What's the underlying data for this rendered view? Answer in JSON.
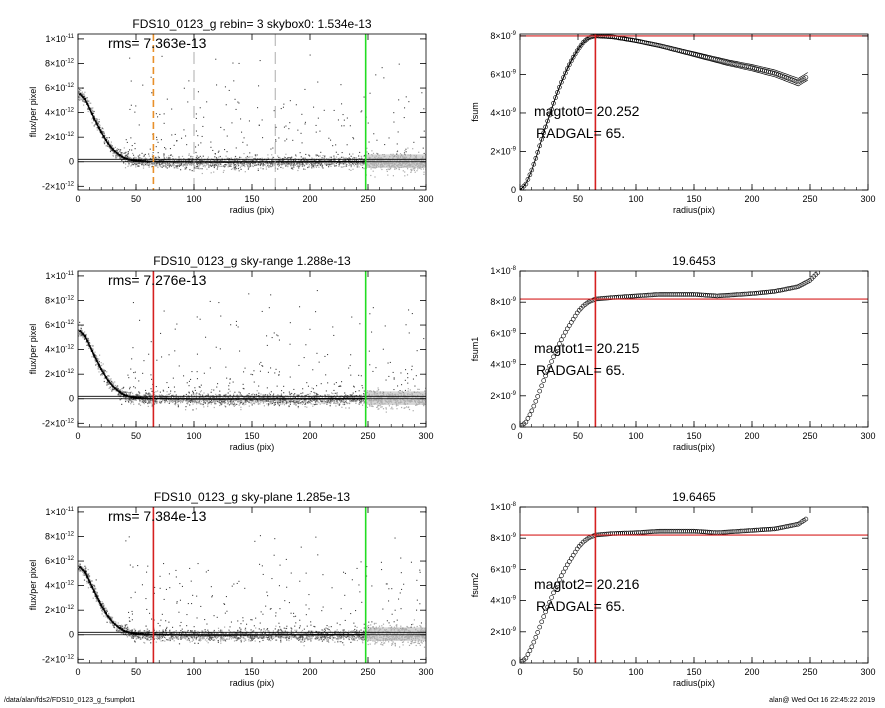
{
  "footer": {
    "left": "/data/alan/fds2/FDS10_0123_g_fsumplot1",
    "right": "alan@  Wed Oct 16 22:45:22 2019"
  },
  "colors": {
    "orange": "#e8902a",
    "red": "#d62020",
    "green": "#22dd22",
    "gray": "#9a9a9a",
    "black": "#000000"
  },
  "chart_data": [
    {
      "id": "profile-1",
      "type": "scatter",
      "title": "FDS10_0123_g rebin= 3   skybox0:  1.534e-13",
      "xlabel": "radius (pix)",
      "ylabel": "flux/per pixel",
      "xlim": [
        0,
        300
      ],
      "ylim": [
        -2.3e-12,
        1.04e-11
      ],
      "xticks": [
        0,
        50,
        100,
        150,
        200,
        250,
        300
      ],
      "yticks": [
        {
          "v": -2e-12,
          "m": "-2×10",
          "e": "-12"
        },
        {
          "v": 0,
          "m": "0",
          "e": ""
        },
        {
          "v": 2e-12,
          "m": "2×10",
          "e": "-12"
        },
        {
          "v": 4e-12,
          "m": "4×10",
          "e": "-12"
        },
        {
          "v": 6e-12,
          "m": "6×10",
          "e": "-12"
        },
        {
          "v": 8e-12,
          "m": "8×10",
          "e": "-12"
        },
        {
          "v": 1e-11,
          "m": "1×10",
          "e": "-11"
        }
      ],
      "annotation": "rms= 7.363e-13",
      "vlines": [
        {
          "x": 65,
          "color": "orange",
          "style": "dashed"
        },
        {
          "x": 100,
          "color": "gray",
          "style": "longdash"
        },
        {
          "x": 170,
          "color": "gray",
          "style": "longdash"
        },
        {
          "x": 248,
          "color": "green",
          "style": "solid"
        }
      ],
      "hlines": [
        {
          "y": 2e-13
        },
        {
          "y": 0
        }
      ],
      "profile": [
        [
          2,
          5.5e-12
        ],
        [
          6,
          5.1e-12
        ],
        [
          10,
          4.3e-12
        ],
        [
          15,
          3.3e-12
        ],
        [
          20,
          2.4e-12
        ],
        [
          25,
          1.6e-12
        ],
        [
          30,
          1e-12
        ],
        [
          35,
          6e-13
        ],
        [
          40,
          3e-13
        ],
        [
          45,
          1.5e-13
        ],
        [
          50,
          8e-14
        ],
        [
          60,
          2e-14
        ],
        [
          80,
          0
        ],
        [
          120,
          -2e-14
        ],
        [
          200,
          0
        ],
        [
          248,
          0
        ]
      ]
    },
    {
      "id": "growth-1",
      "type": "line",
      "title": "",
      "xlabel": "radius(pix)",
      "ylabel": "fsum",
      "xlim": [
        0,
        300
      ],
      "ylim": [
        0,
        8.1e-09
      ],
      "xticks": [
        0,
        50,
        100,
        150,
        200,
        250,
        300
      ],
      "yticks": [
        {
          "v": 0,
          "m": "0",
          "e": ""
        },
        {
          "v": 2e-09,
          "m": "2×10",
          "e": "-9"
        },
        {
          "v": 4e-09,
          "m": "4×10",
          "e": "-9"
        },
        {
          "v": 6e-09,
          "m": "6×10",
          "e": "-9"
        },
        {
          "v": 8e-09,
          "m": "8×10",
          "e": "-9"
        }
      ],
      "annotations": [
        "magtot0= 20.252",
        "RADGAL=     65."
      ],
      "vlines": [
        {
          "x": 65,
          "color": "red",
          "style": "solid"
        }
      ],
      "hlines": [
        {
          "y": 8e-09,
          "color": "red"
        }
      ],
      "curve": [
        [
          0,
          0
        ],
        [
          5,
          3e-10
        ],
        [
          10,
          1e-09
        ],
        [
          15,
          1.9e-09
        ],
        [
          20,
          2.9e-09
        ],
        [
          25,
          3.8e-09
        ],
        [
          30,
          4.7e-09
        ],
        [
          35,
          5.5e-09
        ],
        [
          40,
          6.2e-09
        ],
        [
          45,
          6.8e-09
        ],
        [
          50,
          7.3e-09
        ],
        [
          55,
          7.7e-09
        ],
        [
          60,
          7.93e-09
        ],
        [
          65,
          8e-09
        ],
        [
          80,
          7.95e-09
        ],
        [
          100,
          7.75e-09
        ],
        [
          120,
          7.5e-09
        ],
        [
          150,
          7.05e-09
        ],
        [
          180,
          6.6e-09
        ],
        [
          200,
          6.35e-09
        ],
        [
          220,
          6.05e-09
        ],
        [
          240,
          5.6e-09
        ],
        [
          248,
          5.9e-09
        ]
      ],
      "envelope": 2e-10
    },
    {
      "id": "profile-2",
      "type": "scatter",
      "title": "FDS10_0123_g sky-range  1.288e-13",
      "xlabel": "radius (pix)",
      "ylabel": "flux/per pixel",
      "xlim": [
        0,
        300
      ],
      "ylim": [
        -2.3e-12,
        1.04e-11
      ],
      "xticks": [
        0,
        50,
        100,
        150,
        200,
        250,
        300
      ],
      "yticks": [
        {
          "v": -2e-12,
          "m": "-2×10",
          "e": "-12"
        },
        {
          "v": 0,
          "m": "0",
          "e": ""
        },
        {
          "v": 2e-12,
          "m": "2×10",
          "e": "-12"
        },
        {
          "v": 4e-12,
          "m": "4×10",
          "e": "-12"
        },
        {
          "v": 6e-12,
          "m": "6×10",
          "e": "-12"
        },
        {
          "v": 8e-12,
          "m": "8×10",
          "e": "-12"
        },
        {
          "v": 1e-11,
          "m": "1×10",
          "e": "-11"
        }
      ],
      "annotation": "rms= 7.276e-13",
      "vlines": [
        {
          "x": 65,
          "color": "red",
          "style": "solid"
        },
        {
          "x": 248,
          "color": "green",
          "style": "solid"
        }
      ],
      "hlines": [
        {
          "y": 2e-13
        },
        {
          "y": 0
        }
      ],
      "profile": [
        [
          2,
          5.5e-12
        ],
        [
          6,
          5.1e-12
        ],
        [
          10,
          4.3e-12
        ],
        [
          15,
          3.3e-12
        ],
        [
          20,
          2.4e-12
        ],
        [
          25,
          1.6e-12
        ],
        [
          30,
          1e-12
        ],
        [
          35,
          6e-13
        ],
        [
          40,
          3e-13
        ],
        [
          45,
          1.5e-13
        ],
        [
          50,
          8e-14
        ],
        [
          60,
          2e-14
        ],
        [
          80,
          0
        ],
        [
          120,
          -2e-14
        ],
        [
          200,
          0
        ],
        [
          248,
          0
        ]
      ]
    },
    {
      "id": "growth-2",
      "type": "line",
      "title": "19.6453",
      "xlabel": "radius(pix)",
      "ylabel": "fsum1",
      "xlim": [
        0,
        300
      ],
      "ylim": [
        0,
        1e-08
      ],
      "xticks": [
        0,
        50,
        100,
        150,
        200,
        250,
        300
      ],
      "yticks": [
        {
          "v": 0,
          "m": "0",
          "e": ""
        },
        {
          "v": 2e-09,
          "m": "2×10",
          "e": "-9"
        },
        {
          "v": 4e-09,
          "m": "4×10",
          "e": "-9"
        },
        {
          "v": 6e-09,
          "m": "6×10",
          "e": "-9"
        },
        {
          "v": 8e-09,
          "m": "8×10",
          "e": "-9"
        },
        {
          "v": 1e-08,
          "m": "1×10",
          "e": "-8"
        }
      ],
      "annotations": [
        "magtot1= 20.215",
        "RADGAL=     65."
      ],
      "vlines": [
        {
          "x": 65,
          "color": "red",
          "style": "solid"
        }
      ],
      "hlines": [
        {
          "y": 8.2e-09,
          "color": "red"
        }
      ],
      "curve": [
        [
          0,
          0
        ],
        [
          5,
          3e-10
        ],
        [
          10,
          1e-09
        ],
        [
          15,
          1.9e-09
        ],
        [
          20,
          2.9e-09
        ],
        [
          25,
          3.8e-09
        ],
        [
          30,
          4.7e-09
        ],
        [
          35,
          5.5e-09
        ],
        [
          40,
          6.2e-09
        ],
        [
          45,
          6.8e-09
        ],
        [
          50,
          7.4e-09
        ],
        [
          55,
          7.8e-09
        ],
        [
          60,
          8.05e-09
        ],
        [
          65,
          8.2e-09
        ],
        [
          80,
          8.3e-09
        ],
        [
          100,
          8.4e-09
        ],
        [
          120,
          8.5e-09
        ],
        [
          150,
          8.5e-09
        ],
        [
          170,
          8.4e-09
        ],
        [
          200,
          8.55e-09
        ],
        [
          220,
          8.7e-09
        ],
        [
          240,
          9e-09
        ],
        [
          250,
          9.4e-09
        ],
        [
          258,
          1e-08
        ]
      ],
      "envelope": 0
    },
    {
      "id": "profile-3",
      "type": "scatter",
      "title": "FDS10_0123_g sky-plane  1.285e-13",
      "xlabel": "radius (pix)",
      "ylabel": "flux/per pixel",
      "xlim": [
        0,
        300
      ],
      "ylim": [
        -2.3e-12,
        1.04e-11
      ],
      "xticks": [
        0,
        50,
        100,
        150,
        200,
        250,
        300
      ],
      "yticks": [
        {
          "v": -2e-12,
          "m": "-2×10",
          "e": "-12"
        },
        {
          "v": 0,
          "m": "0",
          "e": ""
        },
        {
          "v": 2e-12,
          "m": "2×10",
          "e": "-12"
        },
        {
          "v": 4e-12,
          "m": "4×10",
          "e": "-12"
        },
        {
          "v": 6e-12,
          "m": "6×10",
          "e": "-12"
        },
        {
          "v": 8e-12,
          "m": "8×10",
          "e": "-12"
        },
        {
          "v": 1e-11,
          "m": "1×10",
          "e": "-11"
        }
      ],
      "annotation": "rms= 7.384e-13",
      "vlines": [
        {
          "x": 65,
          "color": "red",
          "style": "solid"
        },
        {
          "x": 248,
          "color": "green",
          "style": "solid"
        }
      ],
      "hlines": [
        {
          "y": 2e-13
        },
        {
          "y": 0
        }
      ],
      "profile": [
        [
          2,
          5.5e-12
        ],
        [
          6,
          5.1e-12
        ],
        [
          10,
          4.3e-12
        ],
        [
          15,
          3.3e-12
        ],
        [
          20,
          2.4e-12
        ],
        [
          25,
          1.6e-12
        ],
        [
          30,
          1e-12
        ],
        [
          35,
          6e-13
        ],
        [
          40,
          3e-13
        ],
        [
          45,
          1.5e-13
        ],
        [
          50,
          8e-14
        ],
        [
          60,
          2e-14
        ],
        [
          80,
          0
        ],
        [
          120,
          -2e-14
        ],
        [
          200,
          0
        ],
        [
          248,
          0
        ]
      ]
    },
    {
      "id": "growth-3",
      "type": "line",
      "title": "19.6465",
      "xlabel": "radius(pix)",
      "ylabel": "fsum2",
      "xlim": [
        0,
        300
      ],
      "ylim": [
        0,
        1e-08
      ],
      "xticks": [
        0,
        50,
        100,
        150,
        200,
        250,
        300
      ],
      "yticks": [
        {
          "v": 0,
          "m": "0",
          "e": ""
        },
        {
          "v": 2e-09,
          "m": "2×10",
          "e": "-9"
        },
        {
          "v": 4e-09,
          "m": "4×10",
          "e": "-9"
        },
        {
          "v": 6e-09,
          "m": "6×10",
          "e": "-9"
        },
        {
          "v": 8e-09,
          "m": "8×10",
          "e": "-9"
        },
        {
          "v": 1e-08,
          "m": "1×10",
          "e": "-8"
        }
      ],
      "annotations": [
        "magtot2= 20.216",
        "RADGAL=     65."
      ],
      "vlines": [
        {
          "x": 65,
          "color": "red",
          "style": "solid"
        }
      ],
      "hlines": [
        {
          "y": 8.2e-09,
          "color": "red"
        }
      ],
      "curve": [
        [
          0,
          0
        ],
        [
          5,
          3e-10
        ],
        [
          10,
          1e-09
        ],
        [
          15,
          1.9e-09
        ],
        [
          20,
          2.9e-09
        ],
        [
          25,
          3.8e-09
        ],
        [
          30,
          4.7e-09
        ],
        [
          35,
          5.5e-09
        ],
        [
          40,
          6.2e-09
        ],
        [
          45,
          6.8e-09
        ],
        [
          50,
          7.4e-09
        ],
        [
          55,
          7.8e-09
        ],
        [
          60,
          8.05e-09
        ],
        [
          65,
          8.2e-09
        ],
        [
          80,
          8.3e-09
        ],
        [
          100,
          8.35e-09
        ],
        [
          120,
          8.45e-09
        ],
        [
          150,
          8.45e-09
        ],
        [
          170,
          8.35e-09
        ],
        [
          200,
          8.5e-09
        ],
        [
          220,
          8.6e-09
        ],
        [
          240,
          8.9e-09
        ],
        [
          248,
          9.3e-09
        ]
      ],
      "envelope": 0
    }
  ]
}
